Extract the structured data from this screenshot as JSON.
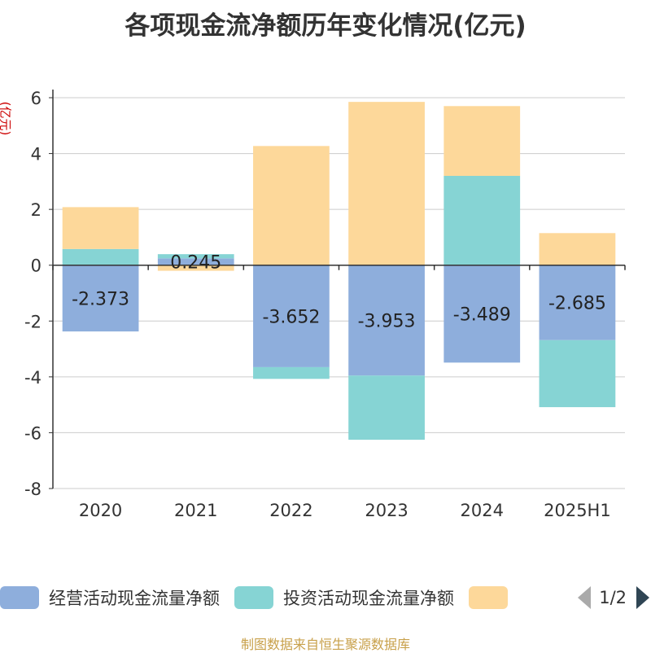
{
  "chart_data": {
    "type": "bar",
    "stacked": true,
    "title": "各项现金流净额历年变化情况(亿元)",
    "ylabel": "(亿元)",
    "categories": [
      "2020",
      "2021",
      "2022",
      "2023",
      "2024",
      "2025H1"
    ],
    "ylim": [
      -8,
      6
    ],
    "yticks": [
      6,
      4,
      2,
      0,
      -2,
      -4,
      -6,
      -8
    ],
    "grid": true,
    "legend_position": "bottom",
    "series": [
      {
        "name": "经营活动现金流量净额",
        "color": "#8eaedc",
        "values": [
          -2.373,
          0.245,
          -3.652,
          -3.953,
          -3.489,
          -2.685
        ],
        "labels": [
          "-2.373",
          "0.245",
          "-3.652",
          "-3.953",
          "-3.489",
          "-2.685"
        ]
      },
      {
        "name": "投资活动现金流量净额",
        "color": "#86d4d4",
        "values": [
          0.58,
          0.15,
          -0.42,
          -2.3,
          3.2,
          -2.4
        ]
      },
      {
        "name": "",
        "color": "#fdd89a",
        "values": [
          1.5,
          -0.2,
          4.27,
          5.85,
          2.5,
          1.15
        ]
      }
    ]
  },
  "legend": {
    "page_text": "1/2"
  },
  "source_text": "制图数据来自恒生聚源数据库"
}
